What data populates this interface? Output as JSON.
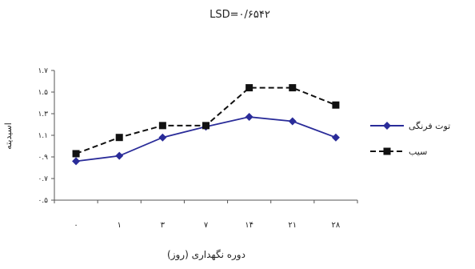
{
  "chart_data": {
    "type": "line",
    "title": "LSD=۰/۶۵۴۲",
    "xlabel": "دوره نگهداری (روز)",
    "ylabel": "اسیدیته",
    "categories": [
      "۰",
      "۱",
      "۳",
      "۷",
      "۱۴",
      "۲۱",
      "۲۸"
    ],
    "yticks": [
      "۰.۵",
      "۰.۷",
      "۰.۹",
      "۱.۱",
      "۱.۳",
      "۱.۵",
      "۱.۷"
    ],
    "ylim": [
      0.5,
      1.7
    ],
    "grid": false,
    "legend_position": "right",
    "series": [
      {
        "name": "توت فرنگی",
        "values": [
          0.86,
          0.91,
          1.08,
          1.18,
          1.27,
          1.23,
          1.08
        ],
        "color": "#2a2c99",
        "marker": "diamond",
        "dash": "solid"
      },
      {
        "name": "سیب",
        "values": [
          0.93,
          1.08,
          1.19,
          1.19,
          1.54,
          1.54,
          1.38
        ],
        "color": "#111111",
        "marker": "square",
        "dash": "dashed"
      }
    ]
  }
}
